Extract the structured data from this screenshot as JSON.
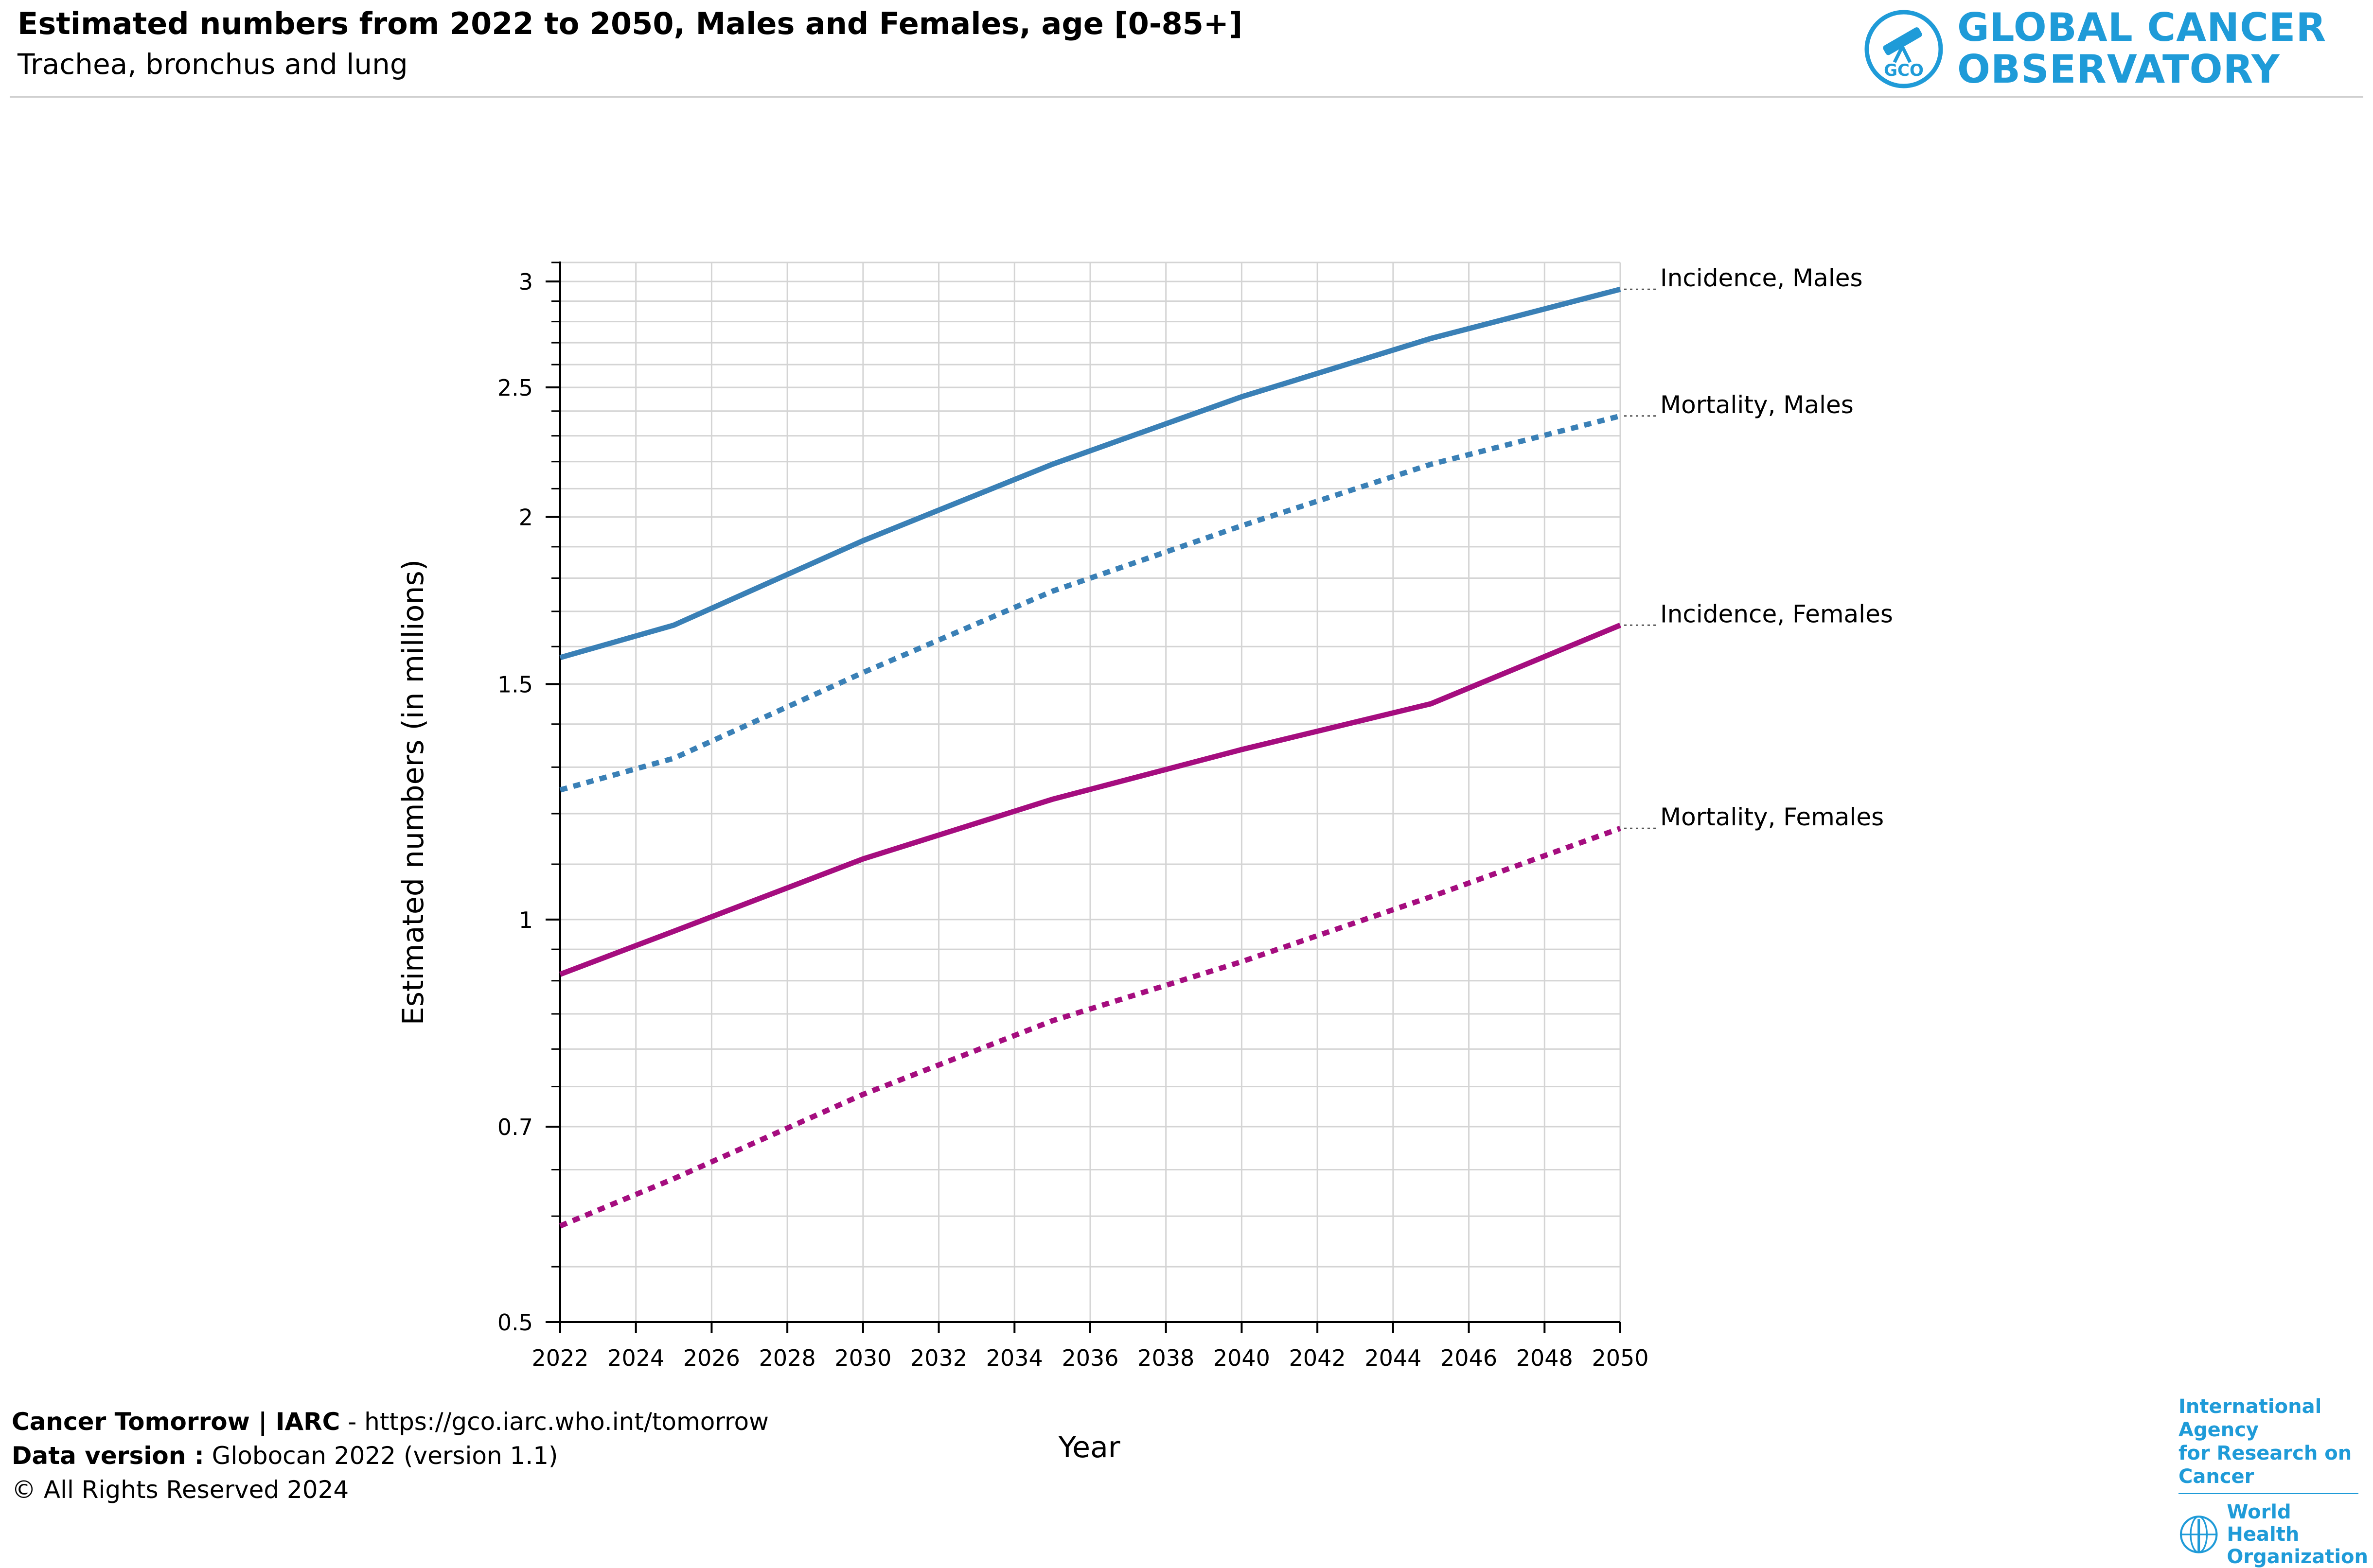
{
  "header": {
    "title": "Estimated numbers from 2022 to 2050, Males and Females, age [0-85+]",
    "subtitle": "Trachea, bronchus and lung"
  },
  "logo": {
    "line1": "GLOBAL CANCER",
    "line2": "OBSERVATORY",
    "badge": "GCO",
    "icon": "telescope-icon",
    "color": "#1f9bd8"
  },
  "footer": {
    "line1_bold": "Cancer Tomorrow | IARC",
    "line1_rest": " - https://gco.iarc.who.int/tomorrow",
    "line2_bold": "Data version :",
    "line2_rest": " Globocan 2022 (version 1.1)",
    "line3": "© All Rights Reserved 2024"
  },
  "partners": {
    "iarc_line1": "International Agency",
    "iarc_line2": "for Research on Cancer",
    "who_line1": "World Health",
    "who_line2": "Organization",
    "who_icon": "who-emblem-icon"
  },
  "chart_data": {
    "type": "line",
    "title": "",
    "xlabel": "Year",
    "ylabel": "Estimated numbers (in millions)",
    "xlim": [
      2022,
      2050
    ],
    "ylim": [
      0.5,
      3.1
    ],
    "yscale": "log",
    "grid": true,
    "x_ticks": [
      2022,
      2024,
      2026,
      2028,
      2030,
      2032,
      2034,
      2036,
      2038,
      2040,
      2042,
      2044,
      2046,
      2048,
      2050
    ],
    "y_ticks": [
      0.5,
      0.7,
      1,
      1.5,
      2,
      2.5,
      3
    ],
    "y_tick_labels": [
      "0.5",
      "0.7",
      "1",
      "1.5",
      "2",
      "2.5",
      "3"
    ],
    "legend_placement": "right (inline labels at line ends)",
    "x": [
      2022,
      2025,
      2030,
      2035,
      2040,
      2045,
      2050
    ],
    "series": [
      {
        "name": "Incidence, Males",
        "color": "#3a80b6",
        "style": "solid",
        "values": [
          1.57,
          1.66,
          1.92,
          2.19,
          2.46,
          2.72,
          2.96
        ]
      },
      {
        "name": "Mortality, Males",
        "color": "#3a80b6",
        "style": "dotted",
        "values": [
          1.25,
          1.32,
          1.53,
          1.76,
          1.97,
          2.19,
          2.38
        ]
      },
      {
        "name": "Incidence, Females",
        "color": "#a50d7f",
        "style": "solid",
        "values": [
          0.91,
          0.98,
          1.11,
          1.23,
          1.34,
          1.45,
          1.66
        ]
      },
      {
        "name": "Mortality, Females",
        "color": "#a50d7f",
        "style": "dotted",
        "values": [
          0.59,
          0.64,
          0.74,
          0.84,
          0.93,
          1.04,
          1.17
        ]
      }
    ]
  }
}
